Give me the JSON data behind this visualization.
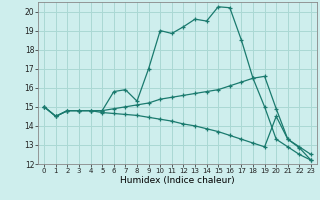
{
  "xlabel": "Humidex (Indice chaleur)",
  "background_color": "#ceeeed",
  "grid_color": "#aad8d4",
  "line_color": "#1a7a6e",
  "xlim": [
    -0.5,
    23.5
  ],
  "ylim": [
    12,
    20.5
  ],
  "yticks": [
    12,
    13,
    14,
    15,
    16,
    17,
    18,
    19,
    20
  ],
  "xticks": [
    0,
    1,
    2,
    3,
    4,
    5,
    6,
    7,
    8,
    9,
    10,
    11,
    12,
    13,
    14,
    15,
    16,
    17,
    18,
    19,
    20,
    21,
    22,
    23
  ],
  "line1_x": [
    0,
    1,
    2,
    3,
    4,
    5,
    6,
    7,
    8,
    9,
    10,
    11,
    12,
    13,
    14,
    15,
    16,
    17,
    18,
    19,
    20,
    21,
    22,
    23
  ],
  "line1_y": [
    15.0,
    14.5,
    14.8,
    14.8,
    14.8,
    14.8,
    15.8,
    15.9,
    15.3,
    17.0,
    19.0,
    18.85,
    19.2,
    19.6,
    19.5,
    20.25,
    20.2,
    18.5,
    16.5,
    15.0,
    13.3,
    12.9,
    12.5,
    12.2
  ],
  "line2_x": [
    0,
    1,
    2,
    3,
    4,
    5,
    6,
    7,
    8,
    9,
    10,
    11,
    12,
    13,
    14,
    15,
    16,
    17,
    18,
    19,
    20,
    21,
    22,
    23
  ],
  "line2_y": [
    15.0,
    14.5,
    14.8,
    14.8,
    14.8,
    14.8,
    14.9,
    15.0,
    15.1,
    15.2,
    15.4,
    15.5,
    15.6,
    15.7,
    15.8,
    15.9,
    16.1,
    16.3,
    16.5,
    16.6,
    14.9,
    13.3,
    12.9,
    12.5
  ],
  "line3_x": [
    0,
    1,
    2,
    3,
    4,
    5,
    6,
    7,
    8,
    9,
    10,
    11,
    12,
    13,
    14,
    15,
    16,
    17,
    18,
    19,
    20,
    21,
    22,
    23
  ],
  "line3_y": [
    15.0,
    14.5,
    14.8,
    14.8,
    14.8,
    14.7,
    14.65,
    14.6,
    14.55,
    14.45,
    14.35,
    14.25,
    14.1,
    14.0,
    13.85,
    13.7,
    13.5,
    13.3,
    13.1,
    12.9,
    14.5,
    13.3,
    12.85,
    12.2
  ]
}
